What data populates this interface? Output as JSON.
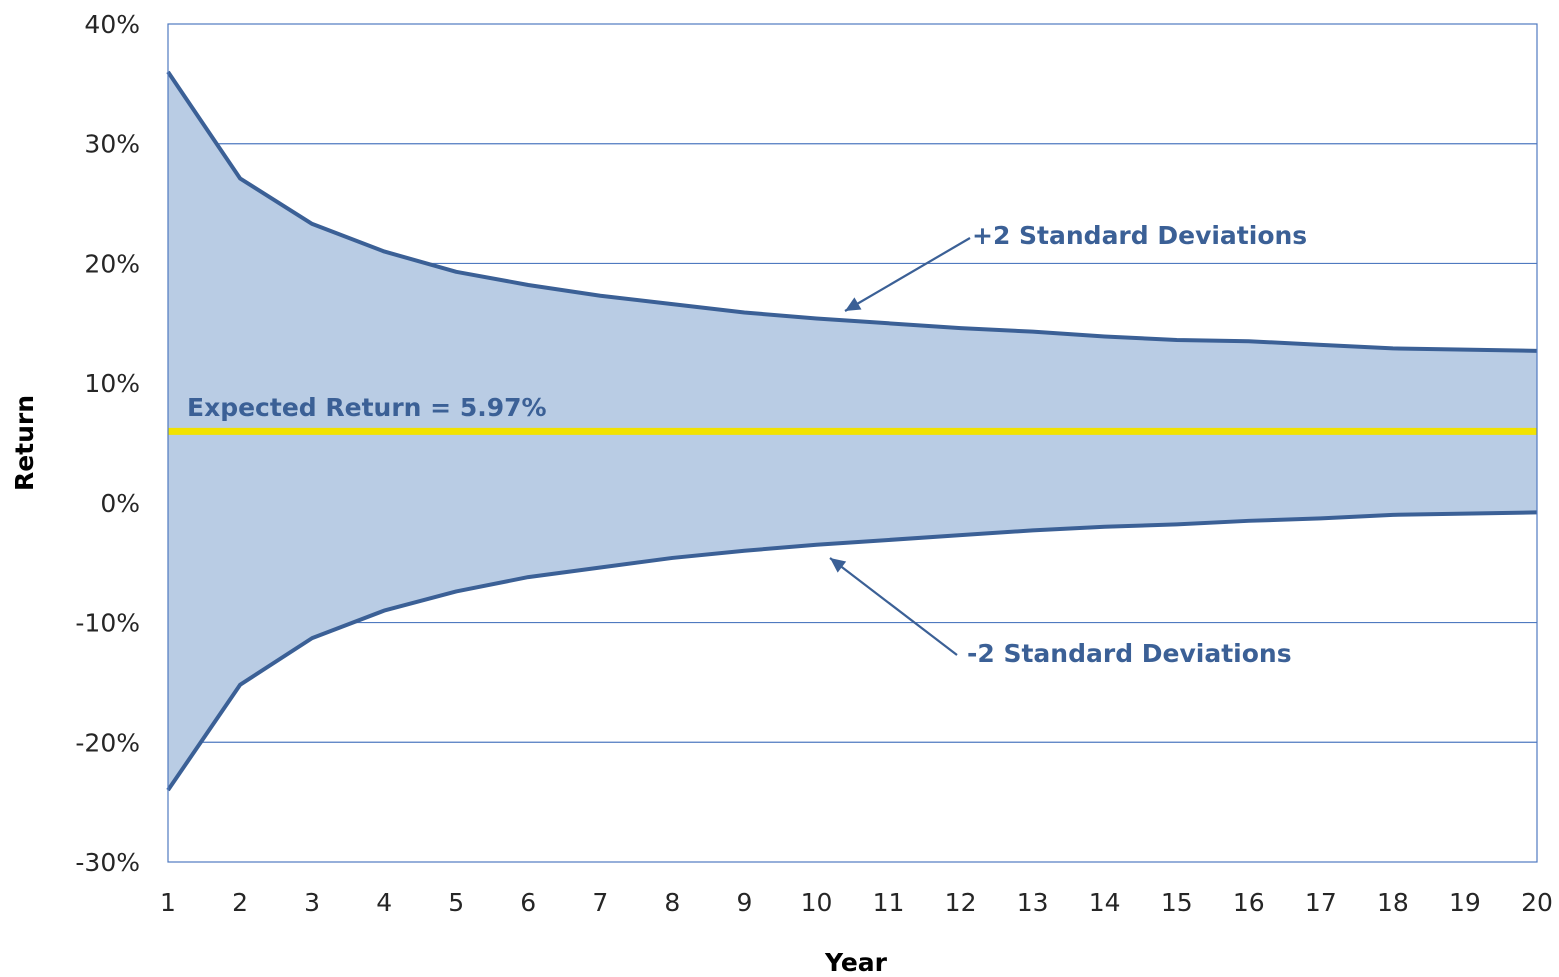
{
  "chart_data": {
    "type": "area",
    "x": [
      1,
      2,
      3,
      4,
      5,
      6,
      7,
      8,
      9,
      10,
      11,
      12,
      13,
      14,
      15,
      16,
      17,
      18,
      19,
      20
    ],
    "series": [
      {
        "name": "+2 Standard Deviations",
        "values": [
          36.0,
          27.1,
          23.3,
          21.0,
          19.3,
          18.2,
          17.3,
          16.6,
          15.9,
          15.4,
          15.0,
          14.6,
          14.3,
          13.9,
          13.6,
          13.5,
          13.2,
          12.9,
          12.8,
          12.7
        ]
      },
      {
        "name": "-2 Standard Deviations",
        "values": [
          -24.0,
          -15.2,
          -11.3,
          -9.0,
          -7.4,
          -6.2,
          -5.4,
          -4.6,
          -4.0,
          -3.5,
          -3.1,
          -2.7,
          -2.3,
          -2.0,
          -1.8,
          -1.5,
          -1.3,
          -1.0,
          -0.9,
          -0.8
        ]
      }
    ],
    "expected_return": 5.97,
    "xlabel": "Year",
    "ylabel": "Return",
    "ylim": [
      -30,
      40
    ],
    "xlim": [
      1,
      20
    ],
    "y_ticks": [
      "-30%",
      "-20%",
      "-10%",
      "0%",
      "10%",
      "20%",
      "30%",
      "40%"
    ],
    "y_tick_values": [
      -30,
      -20,
      -10,
      0,
      10,
      20,
      30,
      40
    ],
    "x_ticks": [
      "1",
      "2",
      "3",
      "4",
      "5",
      "6",
      "7",
      "8",
      "9",
      "10",
      "11",
      "12",
      "13",
      "14",
      "15",
      "16",
      "17",
      "18",
      "19",
      "20"
    ],
    "grid": true,
    "annotations": {
      "expected_label": "Expected Return = 5.97%",
      "upper_label": "+2 Standard Deviations",
      "lower_label": "-2 Standard Deviations"
    },
    "colors": {
      "band_fill": "#b9cce4",
      "line": "#3b6096",
      "expected_line": "#f2e200",
      "grid": "#4f7ac0",
      "annotation_text": "#3b6096"
    }
  }
}
